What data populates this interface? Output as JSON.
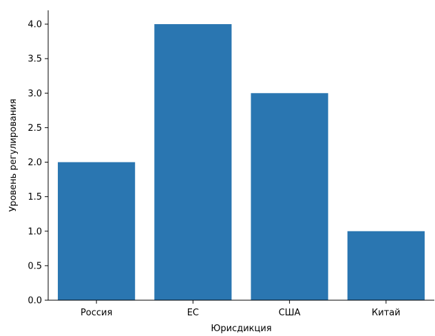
{
  "chart_data": {
    "type": "bar",
    "title": "",
    "xlabel": "Юрисдикция",
    "ylabel": "Уровень регулирования",
    "categories": [
      "Россия",
      "ЕС",
      "США",
      "Китай"
    ],
    "values": [
      2,
      4,
      3,
      1
    ],
    "ylim": [
      0,
      4.2
    ],
    "yticks": [
      "0.0",
      "0.5",
      "1.0",
      "1.5",
      "2.0",
      "2.5",
      "3.0",
      "3.5",
      "4.0"
    ],
    "grid": false,
    "legend": "none",
    "bar_color": "#2a76b1",
    "axis_color": "#000000"
  }
}
